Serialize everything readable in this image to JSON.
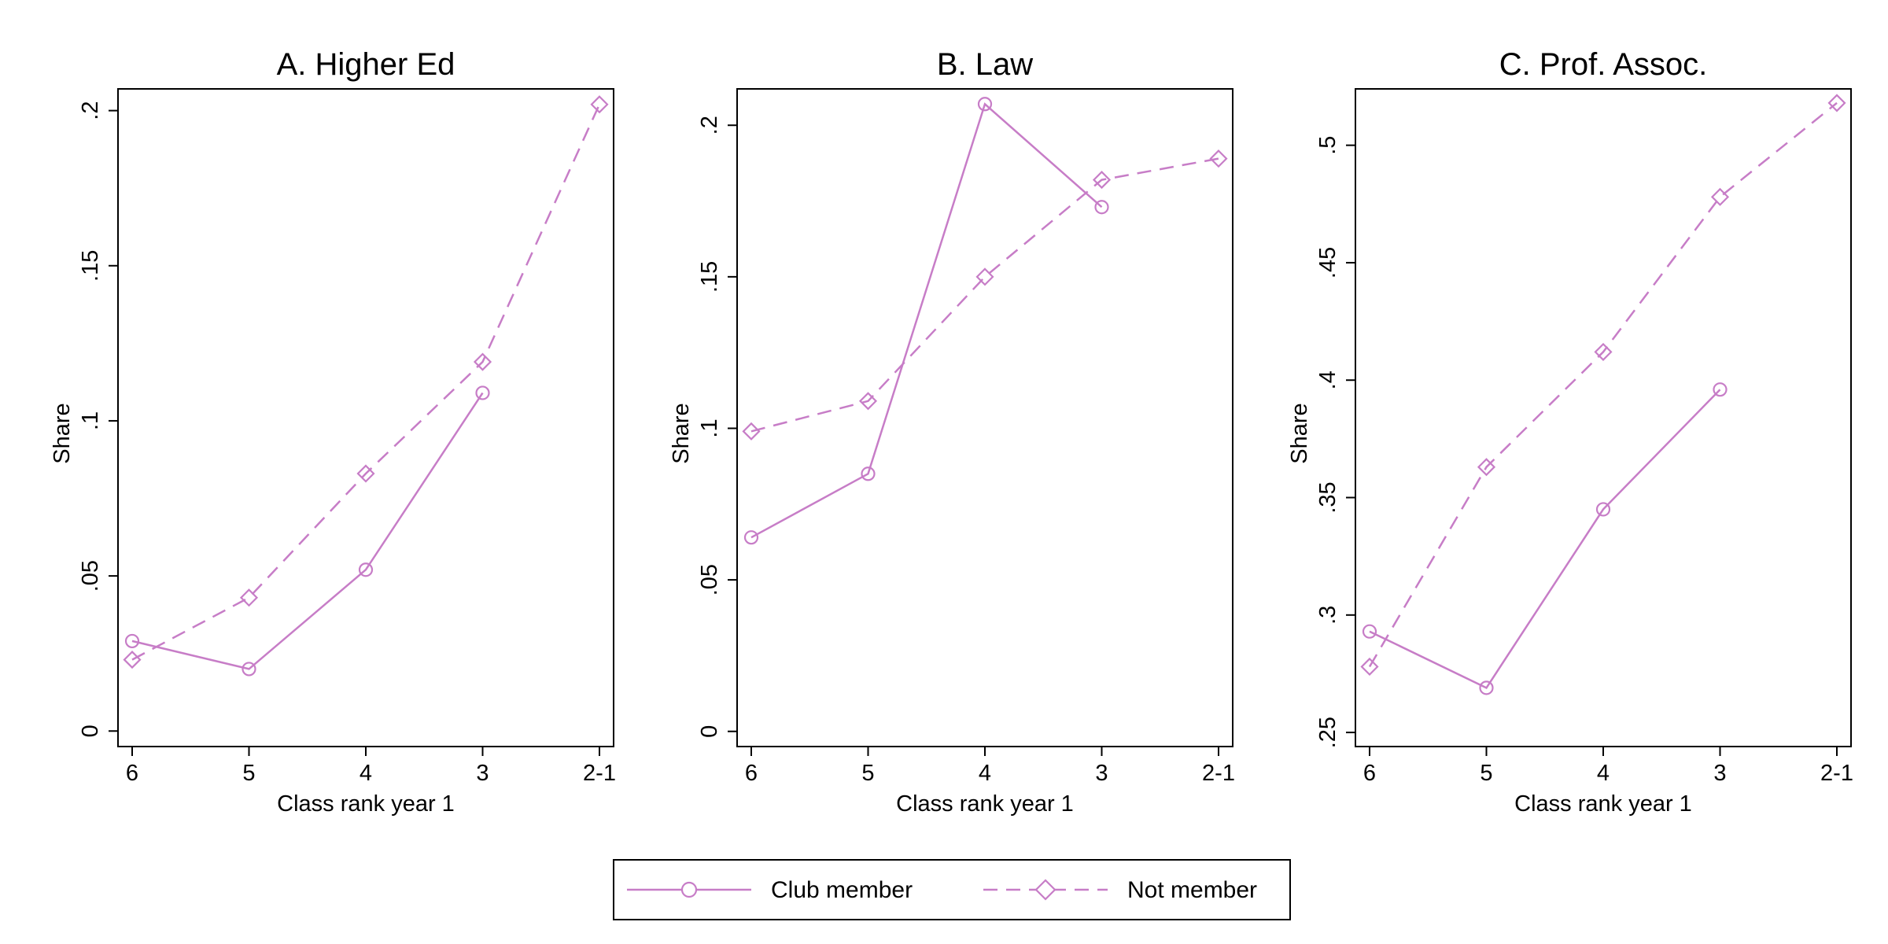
{
  "colors": {
    "series": "#c77dc7",
    "axis": "#000000",
    "background": "#ffffff"
  },
  "legend": {
    "placement": "bottom-center",
    "items": [
      {
        "label": "Club member",
        "marker": "circle",
        "line": "solid"
      },
      {
        "label": "Not member",
        "marker": "diamond",
        "line": "dashed"
      }
    ]
  },
  "chart_data": [
    {
      "type": "line",
      "title": "A. Higher Ed",
      "xlabel": "Class rank year 1",
      "ylabel": "Share",
      "categories": [
        "6",
        "5",
        "4",
        "3",
        "2-1"
      ],
      "ylim": [
        -0.005,
        0.207
      ],
      "yticks": [
        0,
        0.05,
        0.1,
        0.15,
        0.2
      ],
      "ytick_labels": [
        "0",
        ".05",
        ".1",
        ".15",
        ".2"
      ],
      "grid": false,
      "series": [
        {
          "name": "Club member",
          "values": [
            0.029,
            0.02,
            0.052,
            0.109,
            null
          ]
        },
        {
          "name": "Not member",
          "values": [
            0.023,
            0.043,
            0.083,
            0.119,
            0.202
          ]
        }
      ]
    },
    {
      "type": "line",
      "title": "B. Law",
      "xlabel": "Class rank year 1",
      "ylabel": "Share",
      "categories": [
        "6",
        "5",
        "4",
        "3",
        "2-1"
      ],
      "ylim": [
        -0.005,
        0.212
      ],
      "yticks": [
        0,
        0.05,
        0.1,
        0.15,
        0.2
      ],
      "ytick_labels": [
        "0",
        ".05",
        ".1",
        ".15",
        ".2"
      ],
      "grid": false,
      "series": [
        {
          "name": "Club member",
          "values": [
            0.064,
            0.085,
            0.207,
            0.173,
            null
          ]
        },
        {
          "name": "Not member",
          "values": [
            0.099,
            0.109,
            0.15,
            0.182,
            0.189
          ]
        }
      ]
    },
    {
      "type": "line",
      "title": "C. Prof. Assoc.",
      "xlabel": "Class rank year 1",
      "ylabel": "Share",
      "categories": [
        "6",
        "5",
        "4",
        "3",
        "2-1"
      ],
      "ylim": [
        0.244,
        0.524
      ],
      "yticks": [
        0.25,
        0.3,
        0.35,
        0.4,
        0.45,
        0.5
      ],
      "ytick_labels": [
        ".25",
        ".3",
        ".35",
        ".4",
        ".45",
        ".5"
      ],
      "grid": false,
      "series": [
        {
          "name": "Club member",
          "values": [
            0.293,
            0.269,
            0.345,
            0.396,
            null
          ]
        },
        {
          "name": "Not member",
          "values": [
            0.278,
            0.363,
            0.412,
            0.478,
            0.518
          ]
        }
      ]
    }
  ]
}
